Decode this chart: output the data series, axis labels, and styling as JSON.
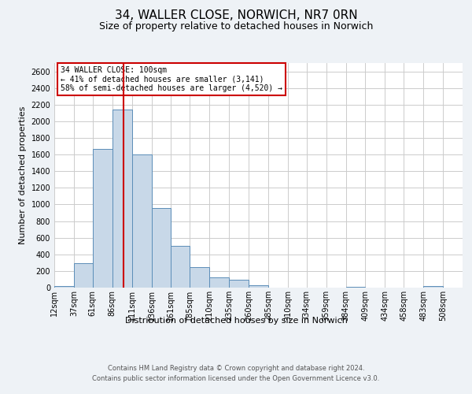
{
  "title": "34, WALLER CLOSE, NORWICH, NR7 0RN",
  "subtitle": "Size of property relative to detached houses in Norwich",
  "xlabel": "Distribution of detached houses by size in Norwich",
  "ylabel": "Number of detached properties",
  "annotation_line1": "34 WALLER CLOSE: 100sqm",
  "annotation_line2": "← 41% of detached houses are smaller (3,141)",
  "annotation_line3": "58% of semi-detached houses are larger (4,520) →",
  "bin_labels": [
    "12sqm",
    "37sqm",
    "61sqm",
    "86sqm",
    "111sqm",
    "136sqm",
    "161sqm",
    "185sqm",
    "210sqm",
    "235sqm",
    "260sqm",
    "285sqm",
    "310sqm",
    "334sqm",
    "359sqm",
    "384sqm",
    "409sqm",
    "434sqm",
    "458sqm",
    "483sqm",
    "508sqm"
  ],
  "bin_edges": [
    12,
    37,
    61,
    86,
    111,
    136,
    161,
    185,
    210,
    235,
    260,
    285,
    310,
    334,
    359,
    384,
    409,
    434,
    458,
    483,
    508
  ],
  "bar_heights": [
    20,
    290,
    1670,
    2140,
    1600,
    960,
    500,
    250,
    120,
    95,
    30,
    0,
    0,
    0,
    0,
    10,
    0,
    0,
    0,
    20
  ],
  "bar_color": "#c8d8e8",
  "bar_edge_color": "#5b8db8",
  "vline_x": 100,
  "vline_color": "#cc0000",
  "ylim": [
    0,
    2700
  ],
  "yticks": [
    0,
    200,
    400,
    600,
    800,
    1000,
    1200,
    1400,
    1600,
    1800,
    2000,
    2200,
    2400,
    2600
  ],
  "grid_color": "#cccccc",
  "background_color": "#eef2f6",
  "plot_bg_color": "#ffffff",
  "title_fontsize": 11,
  "subtitle_fontsize": 9,
  "axis_label_fontsize": 8,
  "tick_fontsize": 7,
  "annotation_fontsize": 7,
  "footer_line1": "Contains HM Land Registry data © Crown copyright and database right 2024.",
  "footer_line2": "Contains public sector information licensed under the Open Government Licence v3.0.",
  "box_facecolor": "#ffffff",
  "box_edgecolor": "#cc0000"
}
